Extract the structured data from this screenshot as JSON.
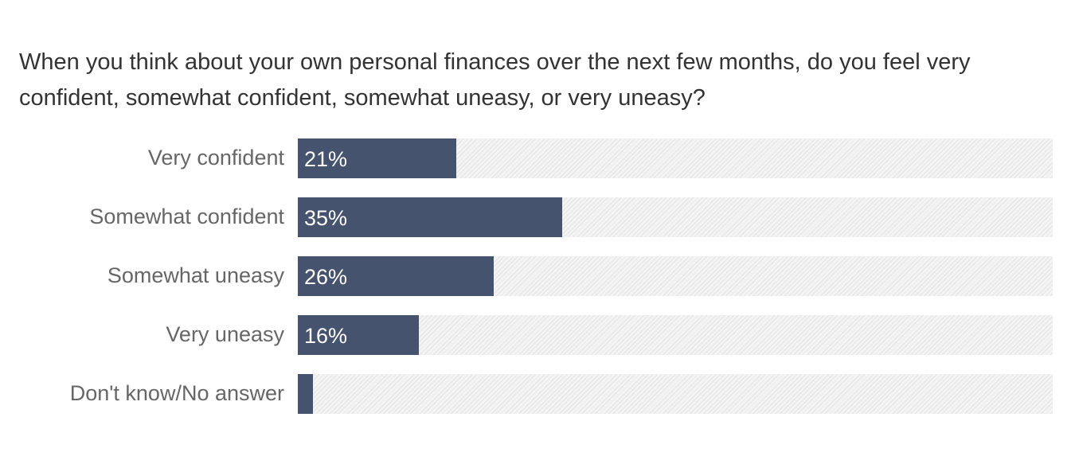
{
  "chart_data": {
    "type": "bar",
    "orientation": "horizontal",
    "title": "When you think about your own personal finances over the next few months, do you feel very confident, somewhat confident, somewhat uneasy, or very uneasy?",
    "categories": [
      "Very confident",
      "Somewhat confident",
      "Somewhat uneasy",
      "Very uneasy",
      "Don't know/No answer"
    ],
    "values": [
      21,
      35,
      26,
      16,
      2
    ],
    "value_labels": [
      "21%",
      "35%",
      "26%",
      "16%",
      ""
    ],
    "xlim": [
      0,
      100
    ],
    "unit": "%",
    "grid": false,
    "legend": "none",
    "colors": {
      "bar": "#46536e",
      "track": "#f4f4f4",
      "hatch": "#e3e3e3",
      "label": "#666666",
      "title": "#333333",
      "value_text": "#ffffff"
    }
  }
}
